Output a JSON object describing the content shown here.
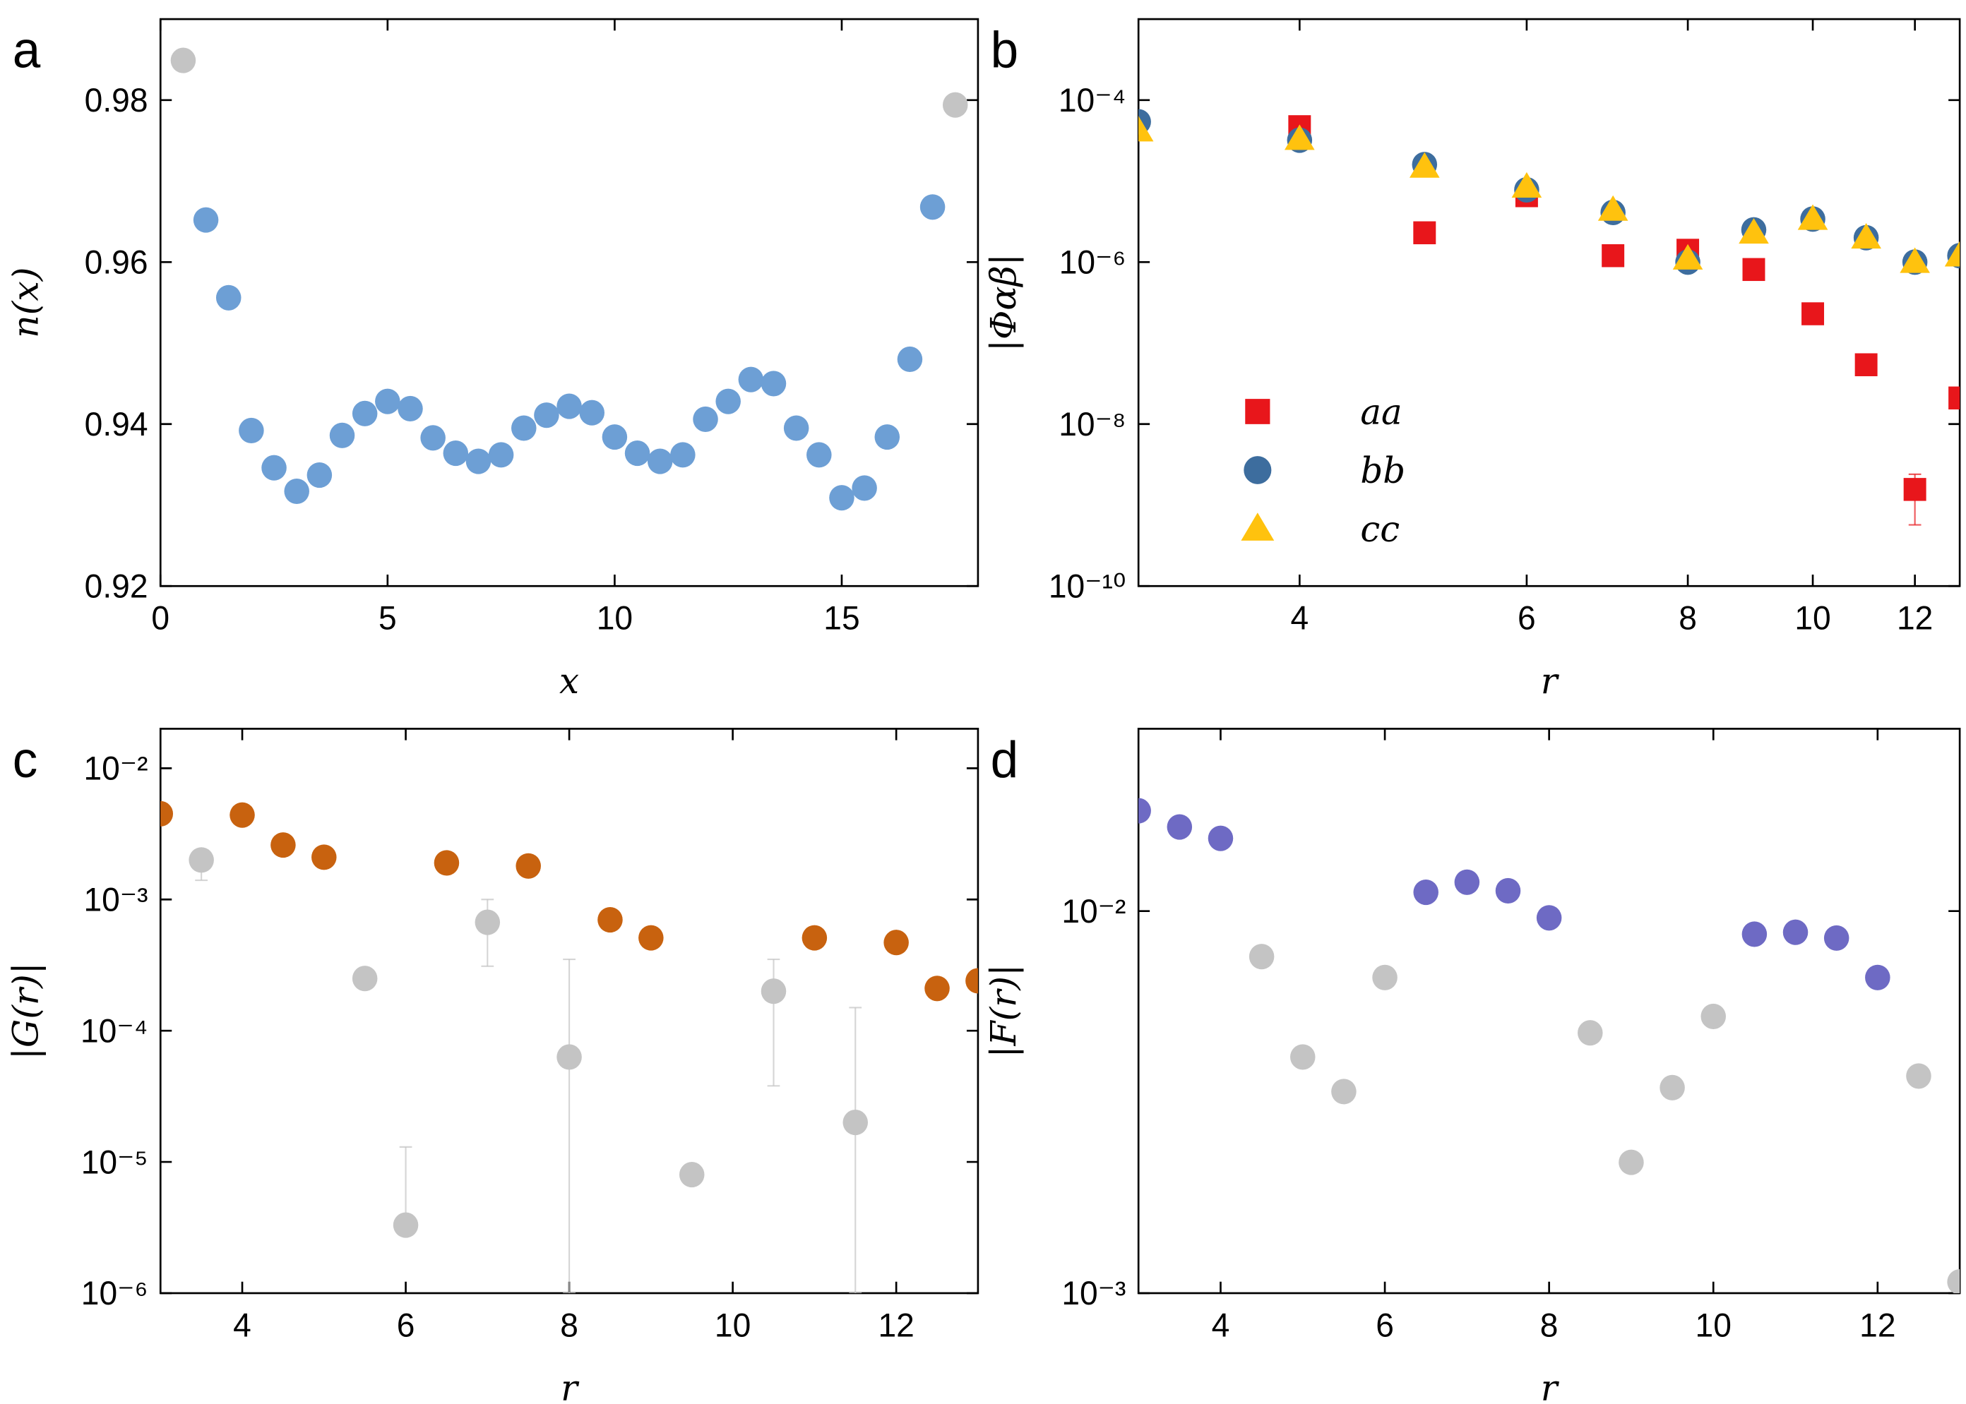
{
  "chart_data": [
    {
      "type": "scatter",
      "panel": "a",
      "xlabel": "x",
      "ylabel": "n(x)",
      "xlim": [
        0,
        18
      ],
      "ylim": [
        0.92,
        0.99
      ],
      "xticks": [
        0,
        5,
        10,
        15
      ],
      "yticks": [
        0.92,
        0.94,
        0.96,
        0.98
      ],
      "series": [
        {
          "color": "#c4c4c4",
          "marker": "circle",
          "x": [
            0.5,
            17.5
          ],
          "values": [
            0.9849,
            0.9794
          ]
        },
        {
          "color": "#6d9fd5",
          "marker": "circle",
          "x": [
            1,
            1.5,
            2,
            2.5,
            3,
            3.5,
            4,
            4.5,
            5,
            5.5,
            6,
            6.5,
            7,
            7.5,
            8,
            8.5,
            9,
            9.5,
            10,
            10.5,
            11,
            11.5,
            12,
            12.5,
            13,
            13.5,
            14,
            14.5,
            15,
            15.5,
            16,
            16.5,
            17
          ],
          "values": [
            0.9652,
            0.9556,
            0.9392,
            0.9346,
            0.9317,
            0.9337,
            0.9386,
            0.9413,
            0.9428,
            0.9419,
            0.9383,
            0.9364,
            0.9354,
            0.9362,
            0.9395,
            0.9411,
            0.9422,
            0.9414,
            0.9384,
            0.9364,
            0.9354,
            0.9362,
            0.9406,
            0.9428,
            0.9455,
            0.945,
            0.9395,
            0.9362,
            0.9309,
            0.9321,
            0.9384,
            0.948,
            0.9668
          ]
        }
      ]
    },
    {
      "type": "scatter",
      "panel": "b",
      "xlabel": "r",
      "ylabel": "|Φαβ|",
      "xscale": "log",
      "yscale": "log",
      "xlim": [
        3,
        13
      ],
      "ylim": [
        1e-10,
        0.001
      ],
      "xticks": [
        4,
        6,
        8,
        10,
        12
      ],
      "yticks": [
        {
          "value": 1e-10,
          "label": "10⁻¹⁰"
        },
        {
          "value": 1e-08,
          "label": "10⁻⁸"
        },
        {
          "value": 1e-06,
          "label": "10⁻⁶"
        },
        {
          "value": 0.0001,
          "label": "10⁻⁴"
        }
      ],
      "legend": "lower left",
      "series": [
        {
          "name": "aa",
          "color": "#e8161b",
          "marker": "square",
          "x": [
            4,
            5,
            6,
            7,
            8,
            9,
            10,
            11,
            12,
            13
          ],
          "values": [
            4.7e-05,
            2.3e-06,
            6.6e-06,
            1.2e-06,
            1.4e-06,
            8.1e-07,
            2.3e-07,
            5.4e-08,
            1.56e-09,
            2.1e-08
          ],
          "lower": [
            null,
            null,
            null,
            null,
            null,
            null,
            null,
            null,
            5.7e-10,
            null
          ],
          "upper": [
            null,
            null,
            null,
            null,
            null,
            null,
            null,
            null,
            2.4e-09,
            null
          ]
        },
        {
          "name": "bb",
          "color": "#3d6d9e",
          "marker": "circle",
          "x": [
            3,
            4,
            5,
            6,
            7,
            8,
            9,
            10,
            11,
            12,
            13
          ],
          "values": [
            5.4e-05,
            3.2e-05,
            1.6e-05,
            7.8e-06,
            4.1e-06,
            1e-06,
            2.5e-06,
            3.4e-06,
            2e-06,
            1e-06,
            1.2e-06
          ]
        },
        {
          "name": "cc",
          "color": "#ffc20e",
          "marker": "triangle",
          "x": [
            3,
            4,
            5,
            6,
            7,
            8,
            9,
            10,
            11,
            12,
            13
          ],
          "values": [
            4.2e-05,
            3.3e-05,
            1.5e-05,
            8.5e-06,
            4.4e-06,
            1.1e-06,
            2.3e-06,
            3.4e-06,
            2e-06,
            1e-06,
            1.2e-06
          ]
        }
      ]
    },
    {
      "type": "scatter",
      "panel": "c",
      "xlabel": "r",
      "ylabel": "|G(r)|",
      "yscale": "log",
      "xlim": [
        3,
        13
      ],
      "ylim": [
        1e-06,
        0.02
      ],
      "xticks": [
        4,
        6,
        8,
        10,
        12
      ],
      "yticks": [
        {
          "value": 1e-06,
          "label": "10⁻⁶"
        },
        {
          "value": 1e-05,
          "label": "10⁻⁵"
        },
        {
          "value": 0.0001,
          "label": "10⁻⁴"
        },
        {
          "value": 0.001,
          "label": "10⁻³"
        },
        {
          "value": 0.01,
          "label": "10⁻²"
        }
      ],
      "series": [
        {
          "color": "#c4c4c4",
          "marker": "circle",
          "x": [
            3.5,
            5.5,
            6,
            7,
            8,
            9.5,
            10.5,
            11.5
          ],
          "values": [
            0.002,
            0.00025,
            3.3e-06,
            0.00067,
            6.3e-05,
            8e-06,
            0.0002,
            2e-05
          ],
          "lower": [
            0.0014,
            null,
            3.3e-06,
            0.00031,
            1e-06,
            null,
            3.8e-05,
            1e-06
          ],
          "upper": [
            0.0022,
            null,
            1.3e-05,
            0.001,
            0.00035,
            null,
            0.00035,
            0.00015
          ]
        },
        {
          "color": "#c8620f",
          "marker": "circle",
          "x": [
            3,
            4,
            4.5,
            5,
            6.5,
            7.5,
            8.5,
            9,
            11,
            12,
            12.5,
            13
          ],
          "values": [
            0.0045,
            0.0044,
            0.0026,
            0.0021,
            0.0019,
            0.0018,
            0.0007,
            0.00051,
            0.00051,
            0.00047,
            0.00021,
            0.00024
          ]
        }
      ]
    },
    {
      "type": "scatter",
      "panel": "d",
      "xlabel": "r",
      "ylabel": "|F(r)|",
      "yscale": "log",
      "xlim": [
        3,
        13
      ],
      "ylim": [
        0.001,
        0.03
      ],
      "xticks": [
        4,
        6,
        8,
        10,
        12
      ],
      "yticks": [
        {
          "value": 0.001,
          "label": "10⁻³"
        },
        {
          "value": 0.01,
          "label": "10⁻²"
        }
      ],
      "series": [
        {
          "color": "#c4c4c4",
          "marker": "circle",
          "x": [
            4.5,
            5,
            5.5,
            6,
            8.5,
            9,
            9.5,
            10,
            12.5,
            13
          ],
          "values": [
            0.0076,
            0.00415,
            0.00337,
            0.0067,
            0.0048,
            0.0022,
            0.00345,
            0.0053,
            0.0037,
            0.00107
          ]
        },
        {
          "color": "#6e6ac4",
          "marker": "circle",
          "x": [
            3,
            3.5,
            4,
            6.5,
            7,
            7.5,
            8,
            10.5,
            11,
            11.5,
            12
          ],
          "values": [
            0.0183,
            0.0166,
            0.0155,
            0.0112,
            0.0119,
            0.0113,
            0.0096,
            0.0087,
            0.0088,
            0.0085,
            0.0067
          ]
        }
      ]
    }
  ]
}
